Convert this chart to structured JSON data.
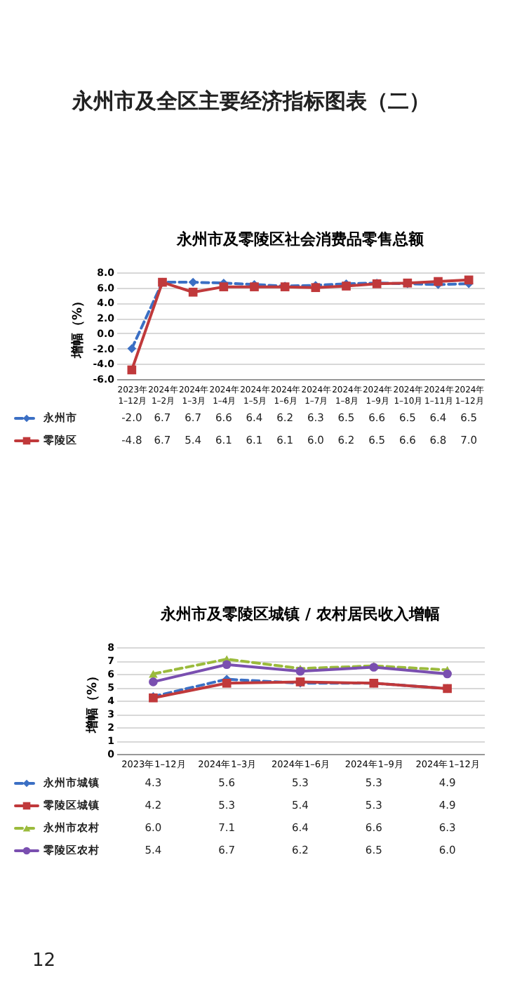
{
  "chart_data": [
    {
      "type": "line",
      "title": "永州市及零陵区社会消费品零售总额",
      "ylabel": "增幅（%）",
      "annotations": [
        "永州市及全区主要经济指标图表（二）"
      ],
      "categories": [
        "2023年1–12月",
        "2024年1–2月",
        "2024年1–3月",
        "2024年1–4月",
        "2024年1–5月",
        "2024年1–6月",
        "2024年1–7月",
        "2024年1–8月",
        "2024年1–9月",
        "2024年1–10月",
        "2024年1–11月",
        "2024年1–12月"
      ],
      "series": [
        {
          "name": "永州市",
          "color": "#3b6fc4",
          "marker": "diamond",
          "line_style": "dashed",
          "values": [
            -2.0,
            6.7,
            6.7,
            6.6,
            6.4,
            6.2,
            6.3,
            6.5,
            6.6,
            6.5,
            6.4,
            6.5
          ],
          "value_labels": [
            "-2.0",
            "6.7",
            "6.7",
            "6.6",
            "6.4",
            "6.2",
            "6.3",
            "6.5",
            "6.6",
            "6.5",
            "6.4",
            "6.5"
          ]
        },
        {
          "name": "零陵区",
          "color": "#c0393b",
          "marker": "square",
          "line_style": "solid",
          "values": [
            -4.8,
            6.7,
            5.4,
            6.1,
            6.1,
            6.1,
            6.0,
            6.2,
            6.5,
            6.6,
            6.8,
            7.0
          ],
          "value_labels": [
            "-4.8",
            "6.7",
            "5.4",
            "6.1",
            "6.1",
            "6.1",
            "6.0",
            "6.2",
            "6.5",
            "6.6",
            "6.8",
            "7.0"
          ]
        }
      ],
      "ylim": [
        -6,
        8
      ],
      "yticks": [
        {
          "value": -6,
          "label": "-6.0"
        },
        {
          "value": -4,
          "label": "-4.0"
        },
        {
          "value": -2,
          "label": "-2.0"
        },
        {
          "value": 0,
          "label": "0.0"
        },
        {
          "value": 2,
          "label": "2.0"
        },
        {
          "value": 4,
          "label": "4.0"
        },
        {
          "value": 6,
          "label": "6.0"
        },
        {
          "value": 8,
          "label": "8.0"
        }
      ],
      "grid": "y",
      "legend": "bottom left"
    },
    {
      "type": "line",
      "title": "永州市及零陵区城镇 / 农村居民收入增幅",
      "ylabel": "增幅（%）",
      "annotations": [
        "12"
      ],
      "categories": [
        "2023年1–12月",
        "2024年1–3月",
        "2024年1–6月",
        "2024年1–9月",
        "2024年1–12月"
      ],
      "series": [
        {
          "name": "永州市城镇",
          "color": "#3b6fc4",
          "marker": "diamond",
          "line_style": "dashed",
          "values": [
            4.3,
            5.6,
            5.3,
            5.3,
            4.9
          ],
          "value_labels": [
            "4.3",
            "5.6",
            "5.3",
            "5.3",
            "4.9"
          ]
        },
        {
          "name": "零陵区城镇",
          "color": "#c0393b",
          "marker": "square",
          "line_style": "solid",
          "values": [
            4.2,
            5.3,
            5.4,
            5.3,
            4.9
          ],
          "value_labels": [
            "4.2",
            "5.3",
            "5.4",
            "5.3",
            "4.9"
          ]
        },
        {
          "name": "永州市农村",
          "color": "#9bbb3c",
          "marker": "triangle",
          "line_style": "dashed",
          "values": [
            6.0,
            7.1,
            6.4,
            6.6,
            6.3
          ],
          "value_labels": [
            "6.0",
            "7.1",
            "6.4",
            "6.6",
            "6.3"
          ]
        },
        {
          "name": "零陵区农村",
          "color": "#7a4fb0",
          "marker": "circle",
          "line_style": "solid",
          "values": [
            5.4,
            6.7,
            6.2,
            6.5,
            6.0
          ],
          "value_labels": [
            "5.4",
            "6.7",
            "6.2",
            "6.5",
            "6.0"
          ]
        }
      ],
      "ylim": [
        0,
        8
      ],
      "yticks": [
        0,
        1,
        2,
        3,
        4,
        5,
        6,
        7,
        8
      ],
      "grid": "y",
      "legend": "bottom left"
    }
  ]
}
